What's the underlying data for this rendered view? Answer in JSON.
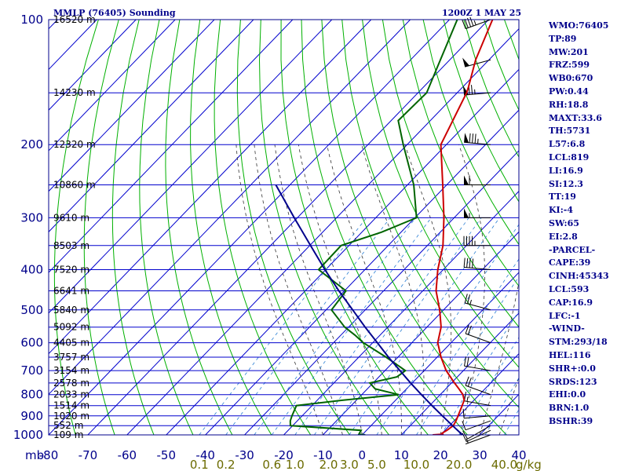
{
  "header": {
    "title": "MMLP (76405) Sounding",
    "time": "1200Z  1 MAY 25"
  },
  "indices": [
    "WMO:76405",
    "TP:89",
    "MW:201",
    "FRZ:599",
    "WB0:670",
    "PW:0.44",
    "RH:18.8",
    "MAXT:33.6",
    "TH:5731",
    "L57:6.8",
    "LCL:819",
    "LI:16.9",
    "SI:12.3",
    "TT:19",
    "KI:-4",
    "SW:65",
    "EI:2.8",
    "-PARCEL-",
    "CAPE:39",
    "CINH:45343",
    "LCL:593",
    "CAP:16.9",
    "LFC:-1",
    "-WIND-",
    "STM:293/18",
    "HEL:116",
    "SHR+:0.0",
    "SRDS:123",
    "EHI:0.0",
    "BRN:1.0",
    "BSHR:39"
  ],
  "colors": {
    "frame": "#00008b",
    "isobar": "#0000cd",
    "isotherm": "#0000cd",
    "dry_adiabat": "#00b000",
    "moist_adiabat": "#333333",
    "mixing_ratio": "#2a7fd4",
    "temperature": "#cc0000",
    "dewpoint": "#006400",
    "parcel": "#00008b",
    "wind": "#000000",
    "mixing_label": "#6b6b00"
  },
  "chart_data": {
    "type": "line",
    "title": "MMLP (76405) Sounding",
    "x_axis": {
      "unit_label": "mb",
      "range": [
        -80,
        40
      ],
      "ticks": [
        -80,
        -70,
        -60,
        -50,
        -40,
        -30,
        -20,
        -10,
        0,
        10,
        20,
        30,
        40
      ],
      "tick_labels": [
        "-80",
        "-70",
        "-60",
        "-50",
        "-40",
        "-30",
        "-20",
        "-10",
        "0",
        "10",
        "20",
        "30",
        "40"
      ]
    },
    "y_axis": {
      "scale": "log",
      "range": [
        1000,
        100
      ],
      "ticks": [
        100,
        200,
        300,
        400,
        500,
        600,
        700,
        800,
        900,
        1000
      ],
      "tick_labels": [
        "100",
        "200",
        "300",
        "400",
        "500",
        "600",
        "700",
        "800",
        "900",
        "1000"
      ]
    },
    "heights": [
      {
        "p": 100,
        "label": "16520 m"
      },
      {
        "p": 150,
        "label": "14230 m"
      },
      {
        "p": 200,
        "label": "12320 m"
      },
      {
        "p": 250,
        "label": "10860 m"
      },
      {
        "p": 300,
        "label": "9610 m"
      },
      {
        "p": 350,
        "label": "8503 m"
      },
      {
        "p": 400,
        "label": "7520 m"
      },
      {
        "p": 450,
        "label": "6641 m"
      },
      {
        "p": 500,
        "label": "5840 m"
      },
      {
        "p": 550,
        "label": "5092 m"
      },
      {
        "p": 600,
        "label": "4405 m"
      },
      {
        "p": 650,
        "label": "3757 m"
      },
      {
        "p": 700,
        "label": "3154 m"
      },
      {
        "p": 750,
        "label": "2578 m"
      },
      {
        "p": 800,
        "label": "2033 m"
      },
      {
        "p": 850,
        "label": "1514 m"
      },
      {
        "p": 900,
        "label": "1020 m"
      },
      {
        "p": 950,
        "label": "552 m"
      },
      {
        "p": 1000,
        "label": "109 m"
      }
    ],
    "mixing_ratio_labels": [
      "0.1",
      "0.2",
      "0.6",
      "1.0",
      "2.0",
      "3.0",
      "5.0",
      "10.0",
      "20.0",
      "40.0"
    ],
    "mixing_ratio_unit": "g/kg",
    "series": [
      {
        "key": "temperature",
        "points": [
          {
            "p": 1000,
            "t": 18
          },
          {
            "p": 996,
            "t": 20.4
          },
          {
            "p": 990,
            "t": 20
          },
          {
            "p": 975,
            "t": 20.5
          },
          {
            "p": 950,
            "t": 21
          },
          {
            "p": 925,
            "t": 20.5
          },
          {
            "p": 900,
            "t": 19.8
          },
          {
            "p": 850,
            "t": 18.3
          },
          {
            "p": 825,
            "t": 17.5
          },
          {
            "p": 800,
            "t": 15.8
          },
          {
            "p": 775,
            "t": 13.4
          },
          {
            "p": 750,
            "t": 10.8
          },
          {
            "p": 700,
            "t": 5.6
          },
          {
            "p": 650,
            "t": 1
          },
          {
            "p": 600,
            "t": -3.4
          },
          {
            "p": 550,
            "t": -6.4
          },
          {
            "p": 500,
            "t": -11
          },
          {
            "p": 450,
            "t": -16.6
          },
          {
            "p": 400,
            "t": -21.4
          },
          {
            "p": 350,
            "t": -26
          },
          {
            "p": 300,
            "t": -32.6
          },
          {
            "p": 250,
            "t": -41
          },
          {
            "p": 200,
            "t": -51.4
          },
          {
            "p": 150,
            "t": -57.6
          },
          {
            "p": 145,
            "t": -58.6
          },
          {
            "p": 125,
            "t": -63.4
          },
          {
            "p": 100,
            "t": -69
          }
        ]
      },
      {
        "key": "dewpoint",
        "points": [
          {
            "p": 1000,
            "t": 0.8
          },
          {
            "p": 996,
            "t": -1
          },
          {
            "p": 975,
            "t": -1.4
          },
          {
            "p": 950,
            "t": -20.6
          },
          {
            "p": 925,
            "t": -21.8
          },
          {
            "p": 900,
            "t": -22.6
          },
          {
            "p": 850,
            "t": -24
          },
          {
            "p": 825,
            "t": -13.4
          },
          {
            "p": 800,
            "t": -0.6
          },
          {
            "p": 775,
            "t": -8
          },
          {
            "p": 750,
            "t": -10.8
          },
          {
            "p": 725,
            "t": -5.4
          },
          {
            "p": 700,
            "t": -4.8
          },
          {
            "p": 650,
            "t": -13
          },
          {
            "p": 600,
            "t": -22.4
          },
          {
            "p": 575,
            "t": -26.4
          },
          {
            "p": 550,
            "t": -31
          },
          {
            "p": 500,
            "t": -38.6
          },
          {
            "p": 450,
            "t": -39.6
          },
          {
            "p": 400,
            "t": -51.8
          },
          {
            "p": 350,
            "t": -52
          },
          {
            "p": 325,
            "t": -45
          },
          {
            "p": 300,
            "t": -39.6
          },
          {
            "p": 250,
            "t": -48.4
          },
          {
            "p": 200,
            "t": -61
          },
          {
            "p": 175,
            "t": -68.2
          },
          {
            "p": 150,
            "t": -67.8
          },
          {
            "p": 125,
            "t": -72.4
          },
          {
            "p": 100,
            "t": -78
          }
        ]
      },
      {
        "key": "parcel",
        "points": [
          {
            "p": 1000,
            "t": 25.6
          },
          {
            "p": 950,
            "t": 20.8
          },
          {
            "p": 900,
            "t": 15.8
          },
          {
            "p": 850,
            "t": 10.6
          },
          {
            "p": 800,
            "t": 5.2
          },
          {
            "p": 750,
            "t": -0.4
          },
          {
            "p": 700,
            "t": -6.2
          },
          {
            "p": 650,
            "t": -12.4
          },
          {
            "p": 600,
            "t": -18.8
          },
          {
            "p": 550,
            "t": -25.8
          },
          {
            "p": 500,
            "t": -33.2
          },
          {
            "p": 450,
            "t": -41.4
          },
          {
            "p": 400,
            "t": -50.2
          },
          {
            "p": 350,
            "t": -59.8
          },
          {
            "p": 300,
            "t": -70.8
          },
          {
            "p": 250,
            "t": -83.6
          }
        ]
      }
    ],
    "wind_barbs": [
      {
        "p": 1000,
        "dir": 250,
        "spd": 5
      },
      {
        "p": 975,
        "dir": 245,
        "spd": 10
      },
      {
        "p": 950,
        "dir": 240,
        "spd": 10
      },
      {
        "p": 925,
        "dir": 250,
        "spd": 10
      },
      {
        "p": 900,
        "dir": 265,
        "spd": 10
      },
      {
        "p": 850,
        "dir": 280,
        "spd": 15
      },
      {
        "p": 800,
        "dir": 290,
        "spd": 20
      },
      {
        "p": 700,
        "dir": 280,
        "spd": 20
      },
      {
        "p": 600,
        "dir": 290,
        "spd": 20
      },
      {
        "p": 500,
        "dir": 285,
        "spd": 25
      },
      {
        "p": 400,
        "dir": 275,
        "spd": 40
      },
      {
        "p": 350,
        "dir": 270,
        "spd": 45
      },
      {
        "p": 300,
        "dir": 270,
        "spd": 55
      },
      {
        "p": 250,
        "dir": 270,
        "spd": 60
      },
      {
        "p": 200,
        "dir": 275,
        "spd": 85
      },
      {
        "p": 150,
        "dir": 265,
        "spd": 75
      },
      {
        "p": 125,
        "dir": 255,
        "spd": 50
      },
      {
        "p": 100,
        "dir": 250,
        "spd": 45
      }
    ]
  }
}
